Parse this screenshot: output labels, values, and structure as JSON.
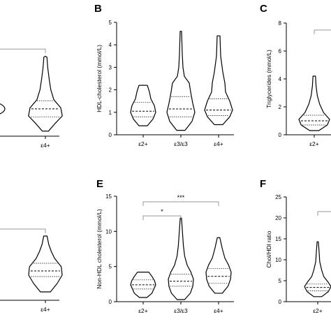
{
  "panels": [
    {
      "letter": "",
      "ylabel": "",
      "categories": [
        "ε4+"
      ],
      "yticks": [],
      "sig": [],
      "violins": [
        {
          "cat": "ε4+",
          "top": 3.95,
          "bottom": 0.25,
          "widths": [
            [
              0.25,
              0.2
            ],
            [
              0.6,
              0.6
            ],
            [
              1.0,
              1.1
            ],
            [
              1.4,
              1.0
            ],
            [
              1.8,
              0.55
            ],
            [
              2.3,
              0.35
            ],
            [
              2.8,
              0.25
            ],
            [
              3.4,
              0.15
            ],
            [
              3.9,
              0.1
            ]
          ],
          "q1": 0.95,
          "med": 1.35,
          "q3": 1.75
        }
      ],
      "partial_left": {
        "x0": 0,
        "x1": 12,
        "top": 1.6,
        "bottom": 1.1
      },
      "bracket_value": 4.3
    },
    {
      "letter": "B",
      "ylabel": "HDL-cholesterol (mmol/L)",
      "categories": [
        "ε2+",
        "ε3/ε3",
        "ε4+"
      ],
      "yticks": [
        "0",
        "1",
        "2",
        "3",
        "4",
        "5"
      ],
      "ylim": [
        0,
        5
      ],
      "sig": [],
      "violins": [
        {
          "cat": "ε2+",
          "top": 2.2,
          "bottom": 0.4,
          "widths": [
            [
              0.4,
              0.3
            ],
            [
              0.7,
              0.7
            ],
            [
              1.0,
              0.9
            ],
            [
              1.3,
              0.8
            ],
            [
              1.6,
              0.55
            ],
            [
              1.9,
              0.45
            ],
            [
              2.2,
              0.3
            ]
          ],
          "q1": 0.8,
          "med": 1.05,
          "q3": 1.45
        },
        {
          "cat": "ε3/ε3",
          "top": 4.6,
          "bottom": 0.2,
          "widths": [
            [
              0.2,
              0.3
            ],
            [
              0.6,
              0.8
            ],
            [
              1.0,
              1.0
            ],
            [
              1.4,
              0.85
            ],
            [
              1.9,
              0.7
            ],
            [
              2.3,
              0.6
            ],
            [
              2.6,
              0.25
            ],
            [
              3.0,
              0.15
            ],
            [
              3.6,
              0.1
            ],
            [
              4.6,
              0.05
            ]
          ],
          "q1": 0.8,
          "med": 1.15,
          "q3": 1.7
        },
        {
          "cat": "ε4+",
          "top": 4.4,
          "bottom": 0.45,
          "widths": [
            [
              0.45,
              0.3
            ],
            [
              0.8,
              0.8
            ],
            [
              1.1,
              1.0
            ],
            [
              1.5,
              0.8
            ],
            [
              1.9,
              0.5
            ],
            [
              2.3,
              0.45
            ],
            [
              2.8,
              0.3
            ],
            [
              3.5,
              0.15
            ],
            [
              4.4,
              0.1
            ]
          ],
          "q1": 0.85,
          "med": 1.1,
          "q3": 1.6
        }
      ]
    },
    {
      "letter": "C",
      "ylabel": "Triglycerides (mmol/L)",
      "categories": [
        "ε2+"
      ],
      "yticks": [
        "0",
        "2",
        "4",
        "6",
        "8"
      ],
      "ylim": [
        0,
        8
      ],
      "sig": [],
      "violins": [
        {
          "cat": "ε2+",
          "top": 4.2,
          "bottom": 0.3,
          "widths": [
            [
              0.3,
              0.3
            ],
            [
              0.7,
              0.85
            ],
            [
              1.1,
              1.0
            ],
            [
              1.6,
              0.6
            ],
            [
              2.2,
              0.35
            ],
            [
              2.8,
              0.2
            ],
            [
              3.5,
              0.12
            ],
            [
              4.2,
              0.08
            ]
          ],
          "q1": 0.7,
          "med": 1.0,
          "q3": 1.4
        }
      ],
      "bracket_value": 7.5
    },
    {
      "letter": "",
      "ylabel": "",
      "categories": [
        "ε4+"
      ],
      "yticks": [],
      "sig": [],
      "violins": [
        {
          "cat": "ε4+",
          "top": 9.2,
          "bottom": 1.2,
          "widths": [
            [
              1.2,
              0.3
            ],
            [
              2.4,
              0.7
            ],
            [
              3.6,
              1.0
            ],
            [
              4.8,
              0.95
            ],
            [
              6.0,
              0.55
            ],
            [
              7.0,
              0.35
            ],
            [
              8.0,
              0.2
            ],
            [
              9.2,
              0.1
            ]
          ],
          "q1": 3.4,
          "med": 4.2,
          "q3": 5.3
        }
      ],
      "bracket_value": 10.2
    },
    {
      "letter": "E",
      "ylabel": "Non-HDL cholesterol (mmol/L)",
      "categories": [
        "ε2+",
        "ε3/ε3",
        "ε4+"
      ],
      "yticks": [
        "0",
        "5",
        "10",
        "15"
      ],
      "ylim": [
        0,
        15
      ],
      "sig": [
        "*",
        "***"
      ],
      "violins": [
        {
          "cat": "ε2+",
          "top": 4.2,
          "bottom": 0.6,
          "widths": [
            [
              0.6,
              0.3
            ],
            [
              1.2,
              0.7
            ],
            [
              1.8,
              0.85
            ],
            [
              2.4,
              1.0
            ],
            [
              3.0,
              0.9
            ],
            [
              3.6,
              0.7
            ],
            [
              4.2,
              0.45
            ]
          ],
          "q1": 1.8,
          "med": 2.4,
          "q3": 3.1
        },
        {
          "cat": "ε3/ε3",
          "top": 11.9,
          "bottom": 0.3,
          "widths": [
            [
              0.3,
              0.3
            ],
            [
              1.2,
              0.75
            ],
            [
              2.2,
              0.95
            ],
            [
              3.2,
              1.0
            ],
            [
              4.2,
              0.8
            ],
            [
              5.2,
              0.5
            ],
            [
              6.5,
              0.3
            ],
            [
              8.0,
              0.2
            ],
            [
              10.0,
              0.12
            ],
            [
              11.9,
              0.05
            ]
          ],
          "q1": 2.2,
          "med": 2.9,
          "q3": 3.9
        },
        {
          "cat": "ε4+",
          "top": 9.1,
          "bottom": 1.2,
          "widths": [
            [
              1.2,
              0.3
            ],
            [
              2.2,
              0.75
            ],
            [
              3.2,
              0.95
            ],
            [
              4.2,
              1.0
            ],
            [
              5.2,
              0.8
            ],
            [
              6.2,
              0.5
            ],
            [
              7.5,
              0.3
            ],
            [
              9.1,
              0.1
            ]
          ],
          "q1": 2.6,
          "med": 3.6,
          "q3": 4.7
        }
      ],
      "brackets": [
        {
          "from": "ε2+",
          "to": "ε3/ε3",
          "y": 12.2,
          "label": "*"
        },
        {
          "from": "ε2+",
          "to": "ε4+",
          "y": 14.2,
          "label": "***"
        }
      ]
    },
    {
      "letter": "F",
      "ylabel": "Chol/HDl ratio",
      "categories": [
        "ε2+"
      ],
      "yticks": [
        "0",
        "5",
        "10",
        "15",
        "20",
        "25"
      ],
      "ylim": [
        0,
        25
      ],
      "sig": [],
      "violins": [
        {
          "cat": "ε2+",
          "top": 14.3,
          "bottom": 1.2,
          "widths": [
            [
              1.2,
              0.3
            ],
            [
              2.4,
              0.8
            ],
            [
              3.6,
              1.0
            ],
            [
              4.8,
              0.75
            ],
            [
              6.0,
              0.45
            ],
            [
              7.5,
              0.3
            ],
            [
              9.5,
              0.15
            ],
            [
              12.0,
              0.1
            ],
            [
              14.3,
              0.05
            ]
          ],
          "q1": 2.6,
          "med": 3.4,
          "q3": 4.2
        }
      ],
      "bracket_value": 21.5
    }
  ],
  "chart_data": [
    {
      "type": "violin",
      "title": "B",
      "ylabel": "HDL-cholesterol (mmol/L)",
      "ylim": [
        0,
        5
      ],
      "categories": [
        "ε2+",
        "ε3/ε3",
        "ε4+"
      ],
      "series": [
        {
          "category": "ε2+",
          "min": 0.4,
          "q1": 0.8,
          "median": 1.05,
          "q3": 1.45,
          "max": 2.2
        },
        {
          "category": "ε3/ε3",
          "min": 0.2,
          "q1": 0.8,
          "median": 1.15,
          "q3": 1.7,
          "max": 4.6
        },
        {
          "category": "ε4+",
          "min": 0.45,
          "q1": 0.85,
          "median": 1.1,
          "q3": 1.6,
          "max": 4.4
        }
      ]
    },
    {
      "type": "violin",
      "title": "C",
      "ylabel": "Triglycerides (mmol/L)",
      "ylim": [
        0,
        8
      ],
      "categories": [
        "ε2+"
      ],
      "series": [
        {
          "category": "ε2+",
          "min": 0.3,
          "q1": 0.7,
          "median": 1.0,
          "q3": 1.4,
          "max": 4.2
        }
      ]
    },
    {
      "type": "violin",
      "title": "E",
      "ylabel": "Non-HDL cholesterol (mmol/L)",
      "ylim": [
        0,
        15
      ],
      "categories": [
        "ε2+",
        "ε3/ε3",
        "ε4+"
      ],
      "annotations": [
        {
          "from": "ε2+",
          "to": "ε3/ε3",
          "label": "*"
        },
        {
          "from": "ε2+",
          "to": "ε4+",
          "label": "***"
        }
      ],
      "series": [
        {
          "category": "ε2+",
          "min": 0.6,
          "q1": 1.8,
          "median": 2.4,
          "q3": 3.1,
          "max": 4.2
        },
        {
          "category": "ε3/ε3",
          "min": 0.3,
          "q1": 2.2,
          "median": 2.9,
          "q3": 3.9,
          "max": 11.9
        },
        {
          "category": "ε4+",
          "min": 1.2,
          "q1": 2.6,
          "median": 3.6,
          "q3": 4.7,
          "max": 9.1
        }
      ]
    },
    {
      "type": "violin",
      "title": "F",
      "ylabel": "Chol/HDl ratio",
      "ylim": [
        0,
        25
      ],
      "categories": [
        "ε2+"
      ],
      "series": [
        {
          "category": "ε2+",
          "min": 1.2,
          "q1": 2.6,
          "median": 3.4,
          "q3": 4.2,
          "max": 14.3
        }
      ]
    }
  ]
}
